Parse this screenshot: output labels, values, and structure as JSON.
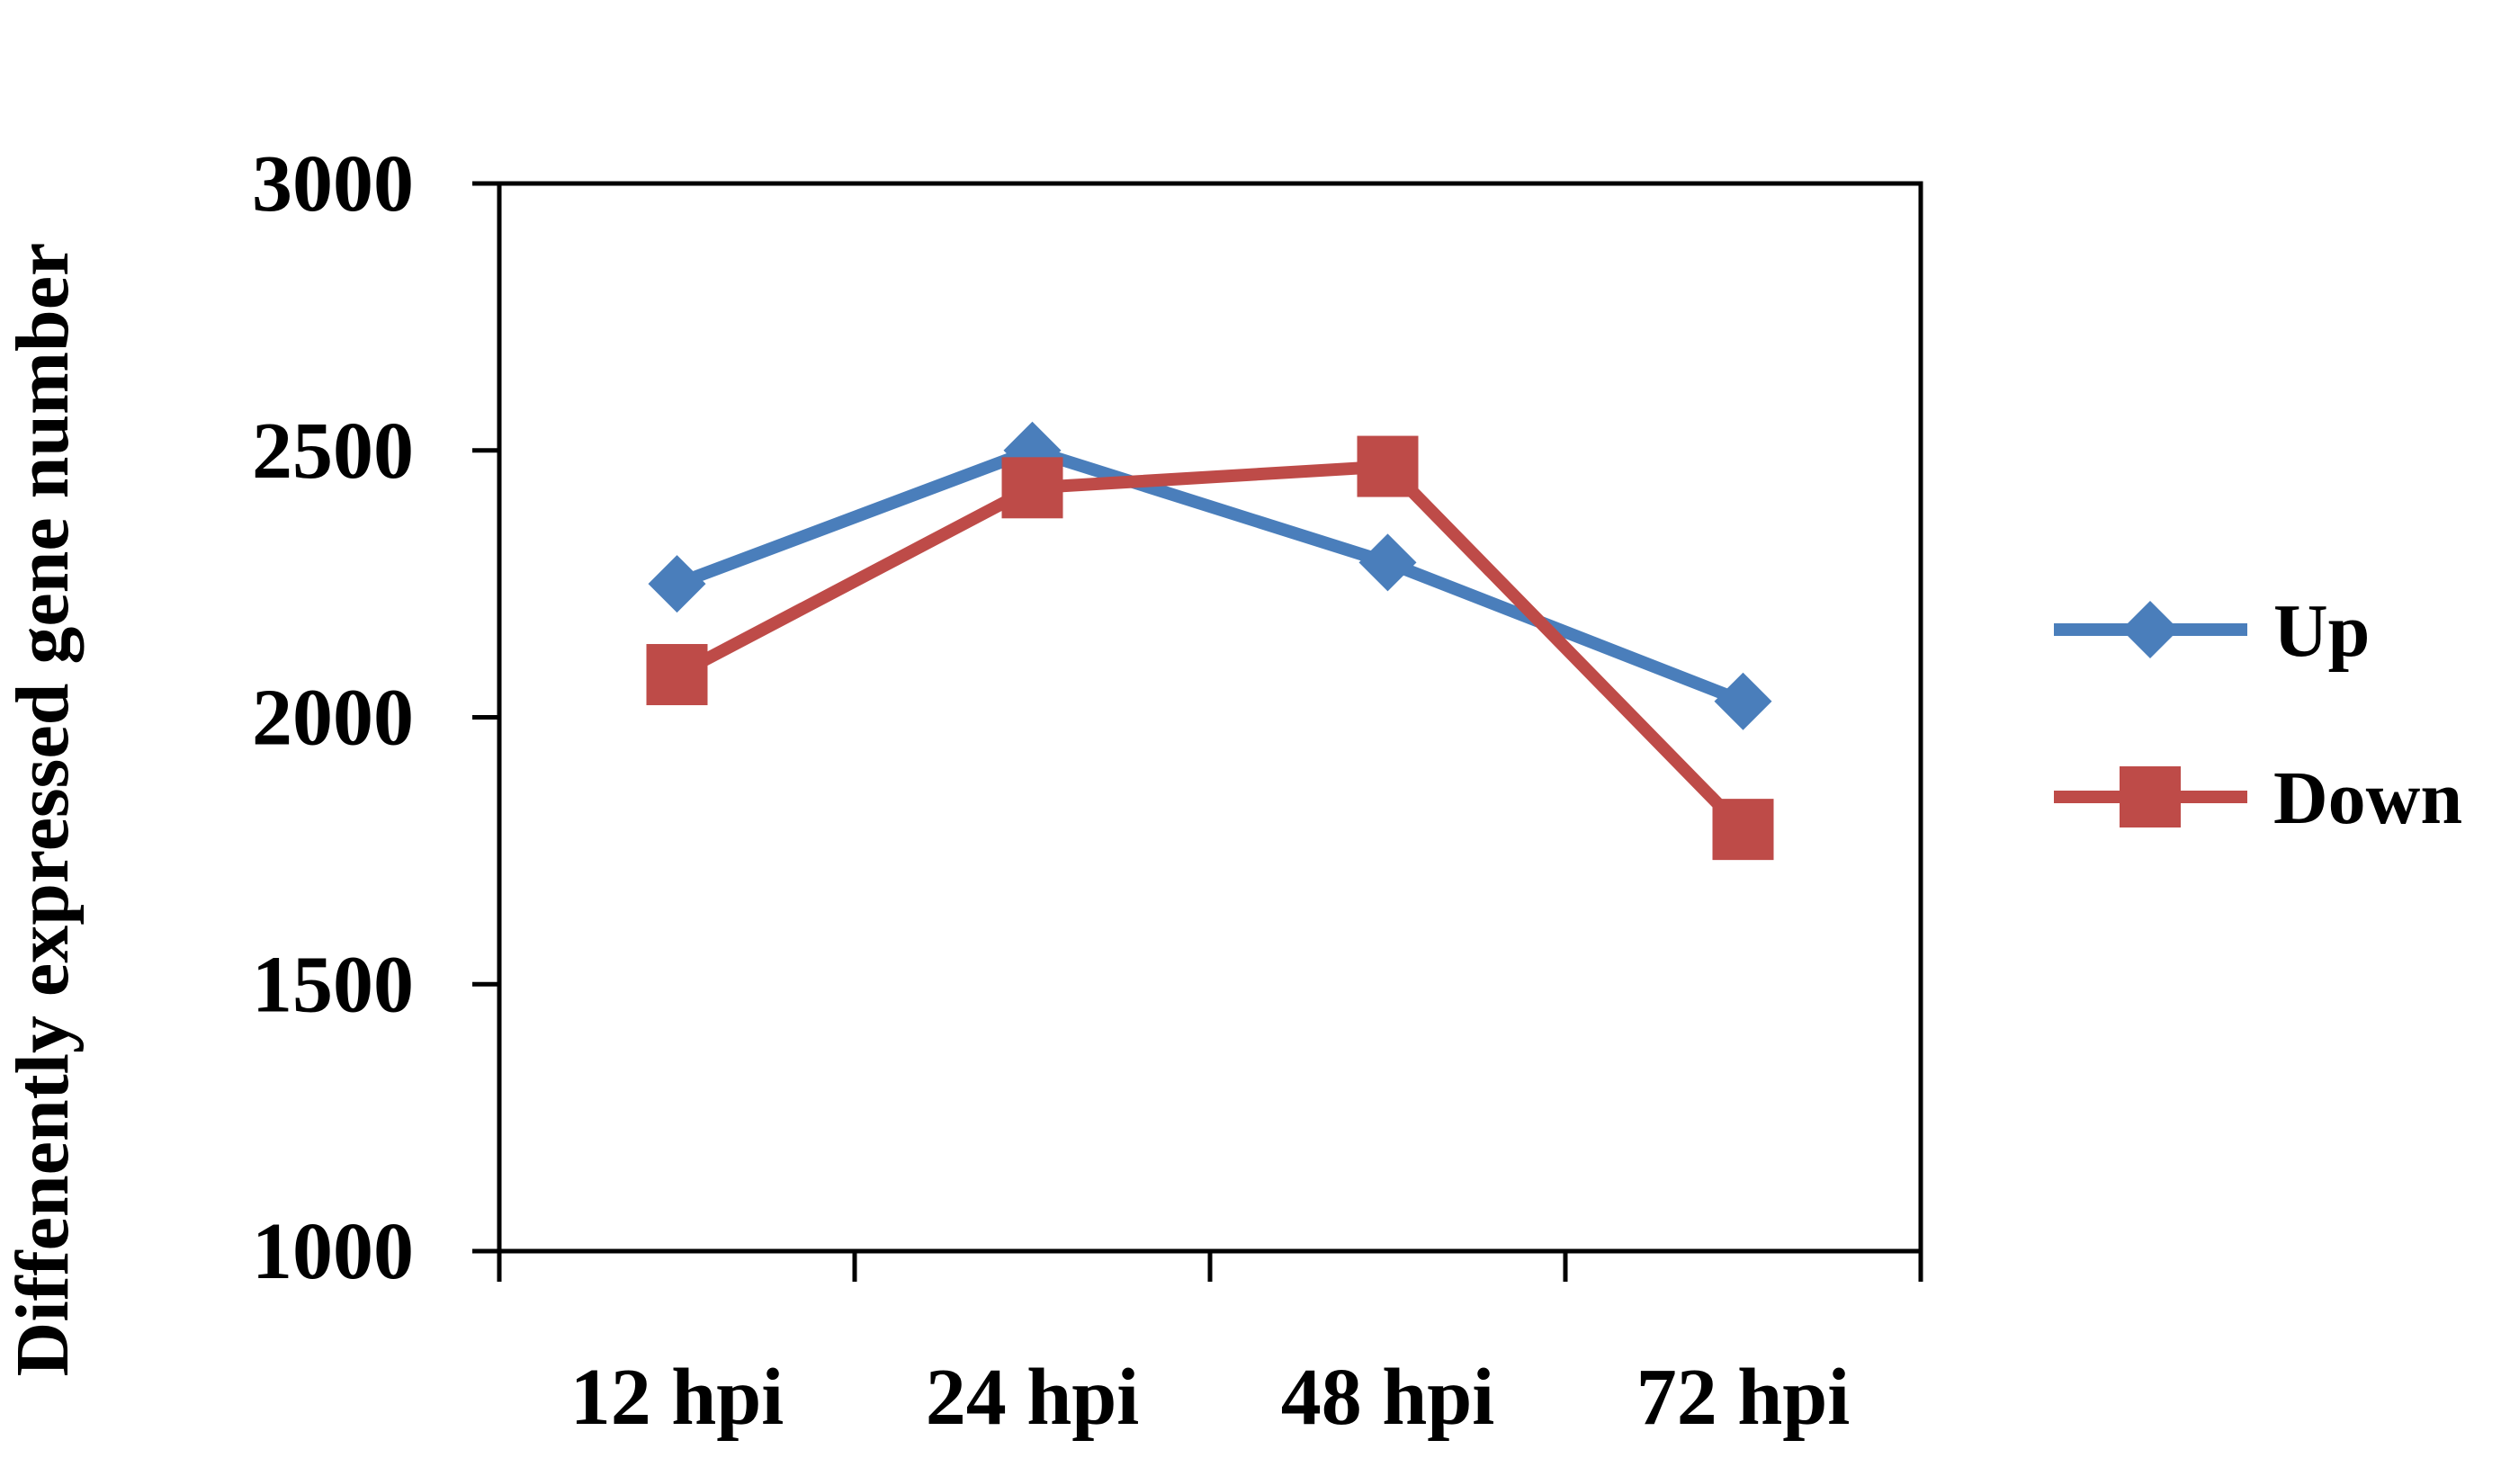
{
  "chart_data": {
    "type": "line",
    "title": "",
    "xlabel": "",
    "ylabel": "Diffenently expressed gene number",
    "categories": [
      "12 hpi",
      "24 hpi",
      "48 hpi",
      "72 hpi"
    ],
    "ylim": [
      1000,
      3000
    ],
    "yticks": [
      "1000",
      "1500",
      "2000",
      "2500",
      "3000"
    ],
    "grid": false,
    "legend_position": "right",
    "series": [
      {
        "name": "Up",
        "values": [
          2250,
          2500,
          2290,
          2030
        ],
        "color": "#4a7ebb",
        "marker": "diamond"
      },
      {
        "name": "Down",
        "values": [
          2080,
          2430,
          2470,
          1790
        ],
        "color": "#be4b48",
        "marker": "square"
      }
    ]
  }
}
